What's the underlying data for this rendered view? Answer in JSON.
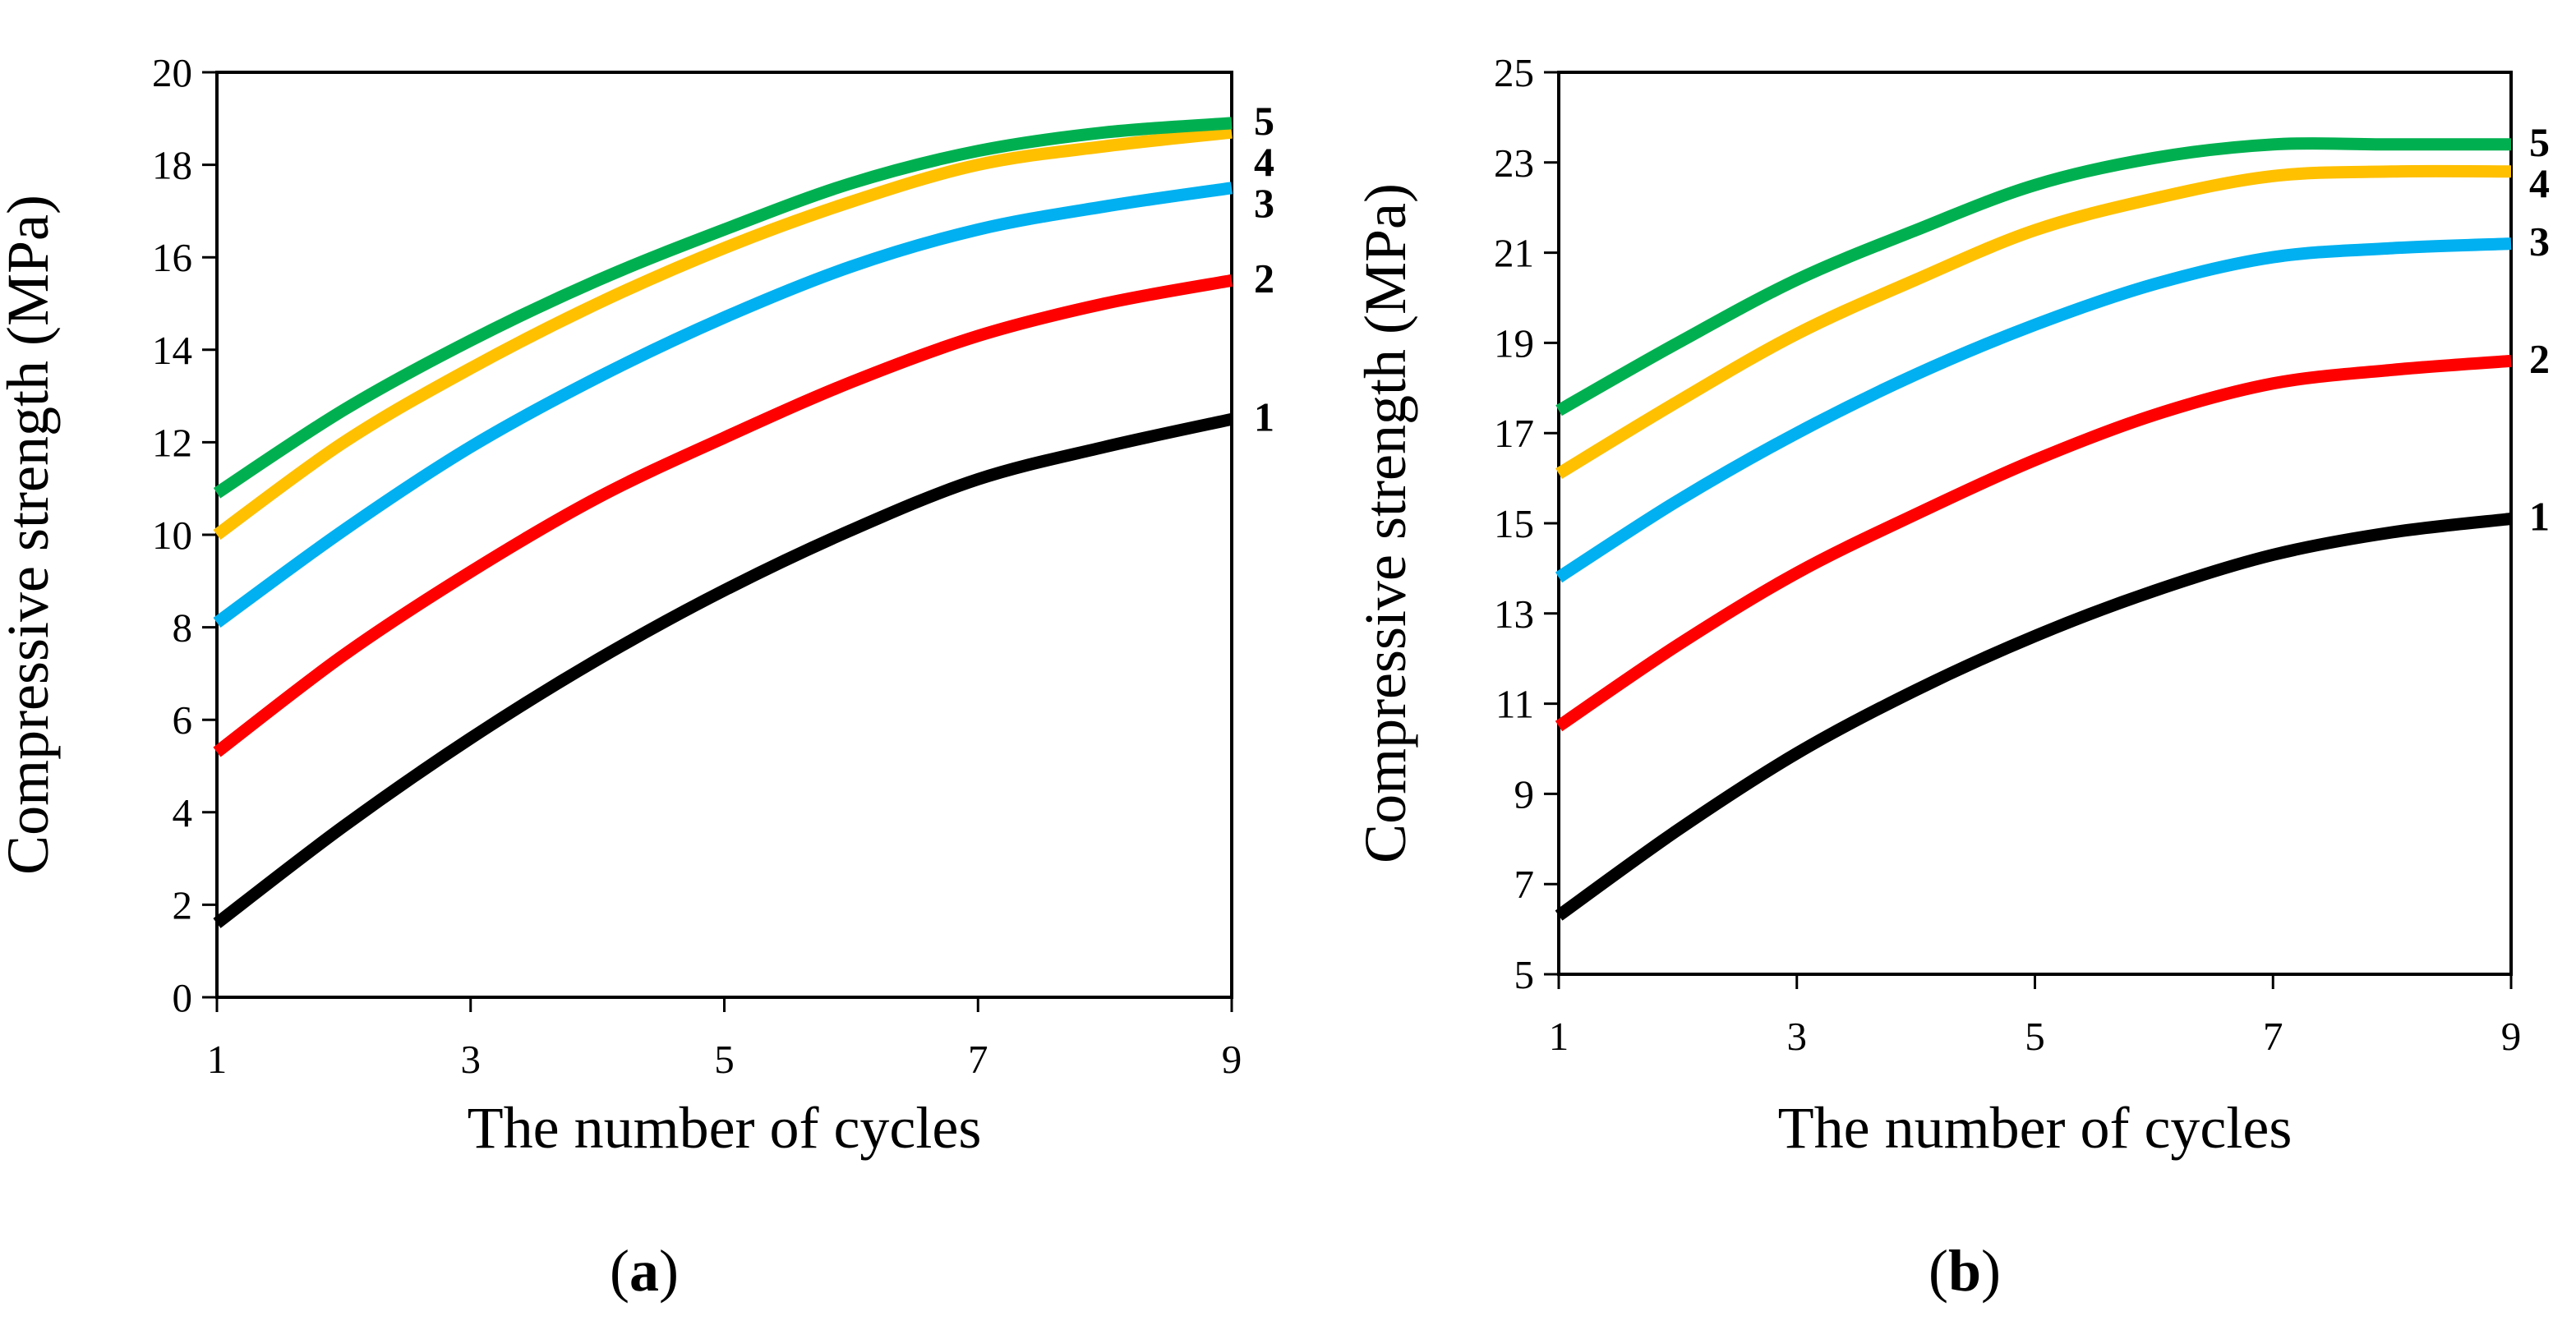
{
  "figure": {
    "panels": [
      {
        "open": "(",
        "letter": "a",
        "close": ")"
      },
      {
        "open": "(",
        "letter": "b",
        "close": ")"
      }
    ]
  },
  "chart_data": [
    {
      "type": "line",
      "panel": "a",
      "xlabel": "The number of cycles",
      "ylabel": "Compressive strength (MPa)",
      "xlim": [
        1,
        9
      ],
      "ylim": [
        0,
        20
      ],
      "xticks": [
        1,
        3,
        5,
        7,
        9
      ],
      "yticks": [
        0,
        2,
        4,
        6,
        8,
        10,
        12,
        14,
        16,
        18,
        20
      ],
      "x": [
        1,
        2,
        3,
        4,
        5,
        6,
        7,
        8,
        9
      ],
      "series": [
        {
          "name": "1",
          "color": "#000000",
          "values": [
            1.6,
            3.7,
            5.6,
            7.3,
            8.8,
            10.1,
            11.2,
            11.9,
            12.5
          ]
        },
        {
          "name": "2",
          "color": "#ff0000",
          "values": [
            5.3,
            7.4,
            9.2,
            10.8,
            12.1,
            13.3,
            14.3,
            15.0,
            15.5
          ]
        },
        {
          "name": "3",
          "color": "#00b0f0",
          "values": [
            8.1,
            10.1,
            11.9,
            13.4,
            14.7,
            15.8,
            16.6,
            17.1,
            17.5
          ]
        },
        {
          "name": "4",
          "color": "#ffc000",
          "values": [
            10.0,
            12.0,
            13.6,
            15.0,
            16.2,
            17.2,
            18.0,
            18.4,
            18.7
          ]
        },
        {
          "name": "5",
          "color": "#00b050",
          "values": [
            10.9,
            12.7,
            14.2,
            15.5,
            16.6,
            17.6,
            18.3,
            18.7,
            18.9
          ]
        }
      ]
    },
    {
      "type": "line",
      "panel": "b",
      "xlabel": "The number of cycles",
      "ylabel": "Compressive strength (MPa)",
      "xlim": [
        1,
        9
      ],
      "ylim": [
        5,
        25
      ],
      "xticks": [
        1,
        3,
        5,
        7,
        9
      ],
      "yticks": [
        5,
        7,
        9,
        11,
        13,
        15,
        17,
        19,
        21,
        23,
        25
      ],
      "x": [
        1,
        2,
        3,
        4,
        5,
        6,
        7,
        8,
        9
      ],
      "series": [
        {
          "name": "1",
          "color": "#000000",
          "values": [
            6.3,
            8.2,
            9.9,
            11.3,
            12.5,
            13.5,
            14.3,
            14.8,
            15.1
          ]
        },
        {
          "name": "2",
          "color": "#ff0000",
          "values": [
            10.5,
            12.3,
            13.9,
            15.2,
            16.4,
            17.4,
            18.1,
            18.4,
            18.6
          ]
        },
        {
          "name": "3",
          "color": "#00b0f0",
          "values": [
            13.8,
            15.5,
            17.0,
            18.3,
            19.4,
            20.3,
            20.9,
            21.1,
            21.2
          ]
        },
        {
          "name": "4",
          "color": "#ffc000",
          "values": [
            16.1,
            17.7,
            19.2,
            20.4,
            21.5,
            22.2,
            22.7,
            22.8,
            22.8
          ]
        },
        {
          "name": "5",
          "color": "#00b050",
          "values": [
            17.5,
            19.0,
            20.4,
            21.5,
            22.5,
            23.1,
            23.4,
            23.4,
            23.4
          ]
        }
      ]
    }
  ]
}
